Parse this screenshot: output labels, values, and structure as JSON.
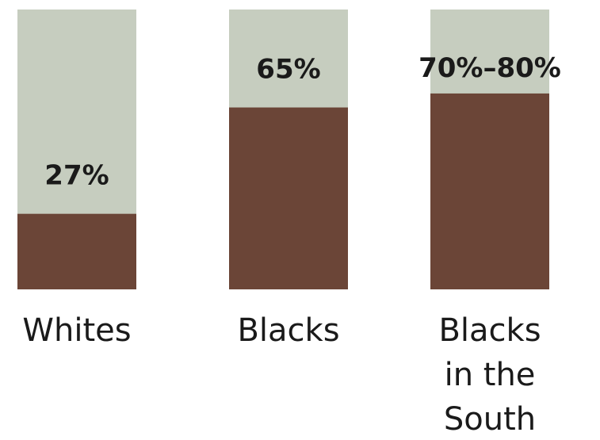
{
  "chart_data": {
    "type": "bar",
    "categories": [
      [
        "Whites"
      ],
      [
        "Blacks"
      ],
      [
        "Blacks",
        "in the",
        "South"
      ]
    ],
    "values": [
      27,
      65,
      [
        70,
        80
      ]
    ],
    "value_labels": [
      "27%",
      "65%",
      "70%–80%"
    ],
    "ylim": [
      0,
      100
    ],
    "grid": false,
    "colors": {
      "bar_fill": "#6b4537",
      "bar_background": "#c6cdbf",
      "text": "#1a1a1a"
    }
  }
}
